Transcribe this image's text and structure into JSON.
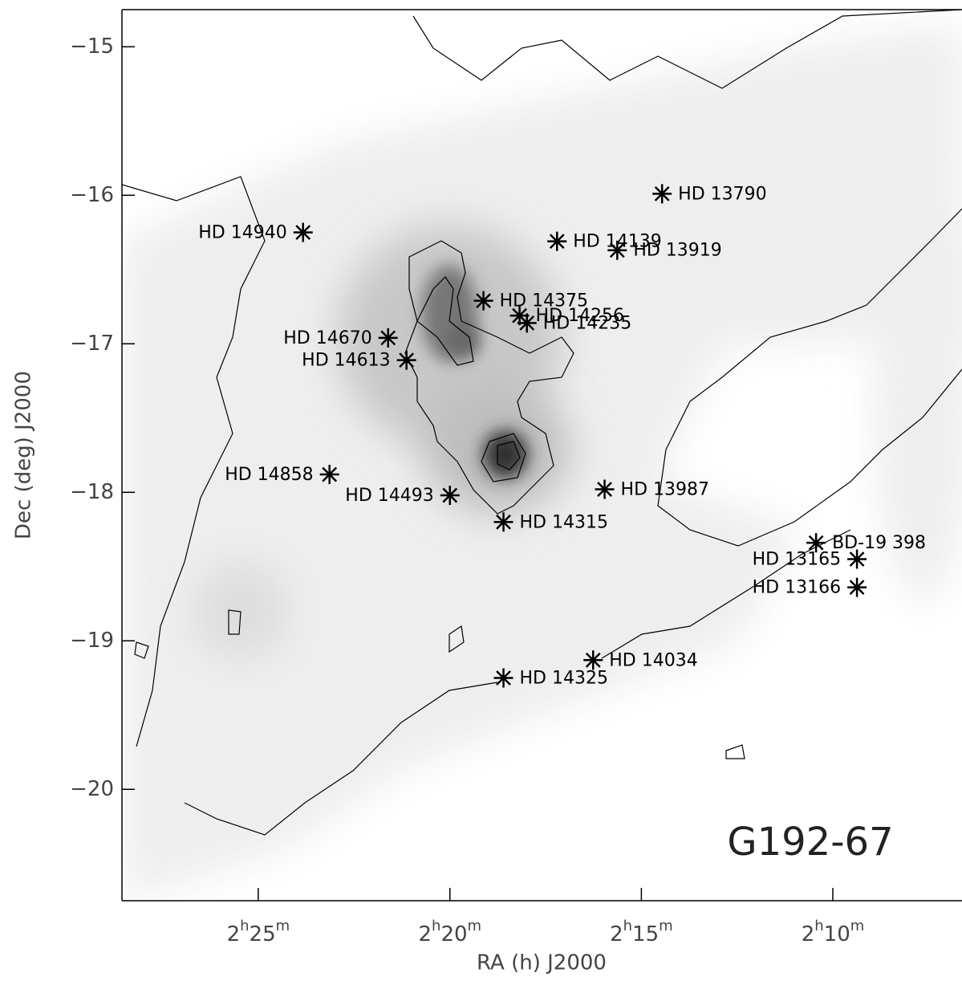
{
  "chart_data": {
    "type": "scatter",
    "annotation": "G192-67",
    "x_label": "RA (h) J2000",
    "y_label": "Dec (deg) J2000",
    "xlim": [
      2.476,
      2.1105
    ],
    "ylim": [
      -20.75,
      -14.75
    ],
    "xticks": [
      {
        "value": 2.4167,
        "label": "2h25m"
      },
      {
        "value": 2.3333,
        "label": "2h20m"
      },
      {
        "value": 2.25,
        "label": "2h15m"
      },
      {
        "value": 2.1667,
        "label": "2h10m"
      }
    ],
    "yticks": [
      {
        "value": -15,
        "label": "−15"
      },
      {
        "value": -16,
        "label": "−16"
      },
      {
        "value": -17,
        "label": "−17"
      },
      {
        "value": -18,
        "label": "−18"
      },
      {
        "value": -19,
        "label": "−19"
      },
      {
        "value": -20,
        "label": "−20"
      }
    ],
    "color": "#000000",
    "points": [
      {
        "name": "HD 14940",
        "x": 2.3972,
        "y": -16.25
      },
      {
        "name": "HD 13790",
        "x": 2.241,
        "y": -15.99
      },
      {
        "name": "HD 14139",
        "x": 2.2867,
        "y": -16.31
      },
      {
        "name": "HD 13919",
        "x": 2.2605,
        "y": -16.37
      },
      {
        "name": "HD 14375",
        "x": 2.3187,
        "y": -16.71
      },
      {
        "name": "HD 14256",
        "x": 2.303,
        "y": -16.81
      },
      {
        "name": "HD 14235",
        "x": 2.2998,
        "y": -16.86
      },
      {
        "name": "HD 14670",
        "x": 2.3602,
        "y": -16.96
      },
      {
        "name": "HD 14613",
        "x": 2.3522,
        "y": -17.11
      },
      {
        "name": "HD 14858",
        "x": 2.3857,
        "y": -17.88
      },
      {
        "name": "HD 14493",
        "x": 2.3333,
        "y": -18.02
      },
      {
        "name": "HD 13987",
        "x": 2.266,
        "y": -17.98
      },
      {
        "name": "HD 14315",
        "x": 2.31,
        "y": -18.2
      },
      {
        "name": "BD-19 398",
        "x": 2.174,
        "y": -18.34
      },
      {
        "name": "HD 13165",
        "x": 2.1562,
        "y": -18.45
      },
      {
        "name": "HD 13166",
        "x": 2.1562,
        "y": -18.64
      },
      {
        "name": "HD 14034",
        "x": 2.271,
        "y": -19.13
      },
      {
        "name": "HD 14325",
        "x": 2.31,
        "y": -19.25
      }
    ]
  }
}
